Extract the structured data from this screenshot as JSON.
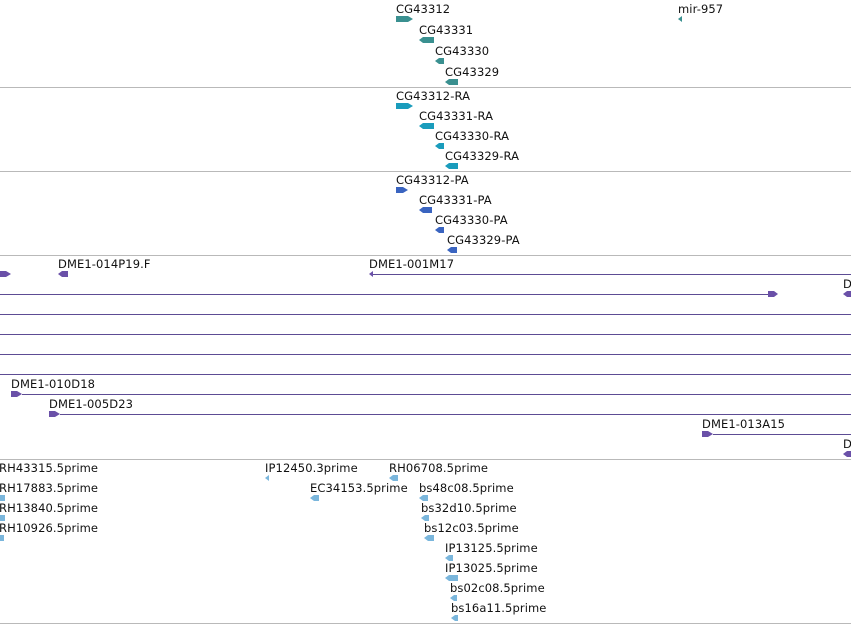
{
  "colors": {
    "gene": "#3a9090",
    "transcript": "#1a9cbc",
    "protein": "#3a64c0",
    "clone": "#6a50a8",
    "est": "#7ab6dc",
    "separator": "#b9b9b9"
  },
  "gene_track": {
    "labels": [
      "CG43312",
      "CG43331",
      "CG43330",
      "CG43329",
      "mir-957"
    ]
  },
  "transcript_track": {
    "labels": [
      "CG43312-RA",
      "CG43331-RA",
      "CG43330-RA",
      "CG43329-RA"
    ]
  },
  "protein_track": {
    "labels": [
      "CG43312-PA",
      "CG43331-PA",
      "CG43330-PA",
      "CG43329-PA"
    ]
  },
  "clone_track": {
    "labels": [
      "DME1-014P19.F",
      "DME1-001M17",
      "D",
      "DME1-010D18",
      "DME1-005D23",
      "DME1-013A15",
      "D"
    ]
  },
  "est_track": {
    "labels": [
      "RH43315.5prime",
      "RH17883.5prime",
      "RH13840.5prime",
      "RH10926.5prime",
      "IP12450.3prime",
      "EC34153.5prime",
      "RH06708.5prime",
      "bs48c08.5prime",
      "bs32d10.5prime",
      "bs12c03.5prime",
      "IP13125.5prime",
      "IP13025.5prime",
      "bs02c08.5prime",
      "bs16a11.5prime"
    ]
  }
}
